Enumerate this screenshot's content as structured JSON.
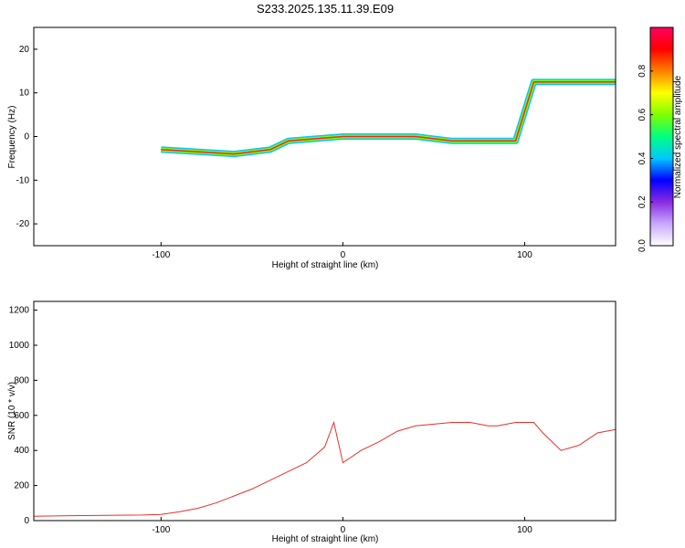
{
  "title": "S233.2025.135.11.39.E09",
  "chart_data": [
    {
      "type": "heatmap",
      "xlabel": "Height of straight line (km)",
      "ylabel": "Frequency (Hz)",
      "xlim": [
        -170,
        150
      ],
      "ylim": [
        -25,
        25
      ],
      "x_ticks": [
        -100,
        0,
        100
      ],
      "x_tick_labels": [
        "-100",
        "0",
        "100"
      ],
      "y_ticks": [
        -20,
        -10,
        0,
        10,
        20
      ],
      "y_tick_labels": [
        "-20",
        "-10",
        "0",
        "10",
        "20"
      ],
      "colorbar": {
        "label": "Normalized spectral amplitude",
        "range": [
          0,
          1
        ],
        "ticks": [
          0.0,
          0.2,
          0.4,
          0.6,
          0.8
        ],
        "tick_labels": [
          "0.0",
          "0.2",
          "0.4",
          "0.6",
          "0.8"
        ],
        "colors": [
          "#ffffff",
          "#c8a8ff",
          "#8a2be2",
          "#0000ff",
          "#00c8ff",
          "#00ff80",
          "#80ff00",
          "#ffff00",
          "#ff8000",
          "#ff0000",
          "#ff0060"
        ]
      },
      "ridge": [
        {
          "x": -100,
          "y": -3
        },
        {
          "x": -60,
          "y": -4
        },
        {
          "x": -40,
          "y": -3
        },
        {
          "x": -30,
          "y": -1
        },
        {
          "x": 0,
          "y": 0
        },
        {
          "x": 40,
          "y": 0
        },
        {
          "x": 60,
          "y": -1
        },
        {
          "x": 95,
          "y": -1
        },
        {
          "x": 105,
          "y": 12.5
        },
        {
          "x": 150,
          "y": 12.5
        }
      ]
    },
    {
      "type": "line",
      "xlabel": "Height of straight line (km)",
      "ylabel": "SNR (10 * v/v)",
      "xlim": [
        -170,
        150
      ],
      "ylim": [
        0,
        1250
      ],
      "x_ticks": [
        -100,
        0,
        100
      ],
      "x_tick_labels": [
        "-100",
        "0",
        "100"
      ],
      "y_ticks": [
        0,
        200,
        400,
        600,
        800,
        1000,
        1200
      ],
      "y_tick_labels": [
        "0",
        "200",
        "400",
        "600",
        "800",
        "1000",
        "1200"
      ],
      "line_color": "#e8302a",
      "series": [
        {
          "x": [
            -170,
            -150,
            -130,
            -110,
            -100,
            -90,
            -80,
            -70,
            -60,
            -50,
            -40,
            -30,
            -20,
            -10,
            -5,
            0,
            10,
            20,
            30,
            40,
            50,
            60,
            70,
            75,
            80,
            85,
            90,
            95,
            100,
            105,
            110,
            120,
            130,
            140,
            150
          ],
          "y": [
            25,
            28,
            30,
            32,
            35,
            50,
            70,
            100,
            140,
            180,
            230,
            280,
            330,
            420,
            560,
            330,
            400,
            450,
            510,
            540,
            550,
            560,
            560,
            550,
            540,
            540,
            550,
            560,
            560,
            560,
            500,
            400,
            430,
            500,
            520
          ]
        }
      ]
    }
  ]
}
